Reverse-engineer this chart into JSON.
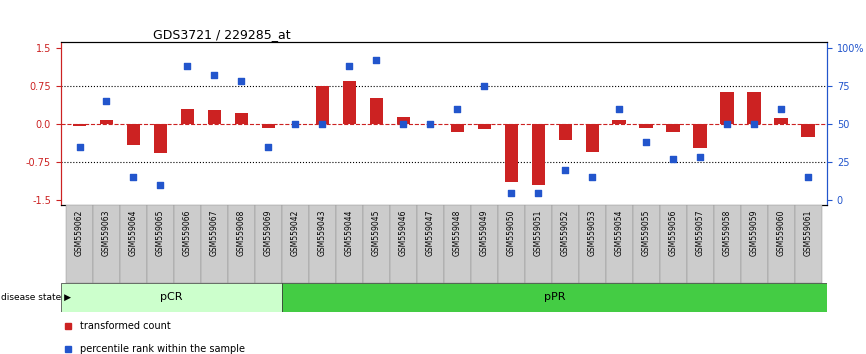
{
  "title": "GDS3721 / 229285_at",
  "samples": [
    "GSM559062",
    "GSM559063",
    "GSM559064",
    "GSM559065",
    "GSM559066",
    "GSM559067",
    "GSM559068",
    "GSM559069",
    "GSM559042",
    "GSM559043",
    "GSM559044",
    "GSM559045",
    "GSM559046",
    "GSM559047",
    "GSM559048",
    "GSM559049",
    "GSM559050",
    "GSM559051",
    "GSM559052",
    "GSM559053",
    "GSM559054",
    "GSM559055",
    "GSM559056",
    "GSM559057",
    "GSM559058",
    "GSM559059",
    "GSM559060",
    "GSM559061"
  ],
  "transformed_count": [
    -0.05,
    0.08,
    -0.42,
    -0.58,
    0.3,
    0.28,
    0.22,
    -0.08,
    0.0,
    0.75,
    0.85,
    0.5,
    0.14,
    0.0,
    -0.15,
    -0.1,
    -1.15,
    -1.2,
    -0.32,
    -0.55,
    0.07,
    -0.08,
    -0.15,
    -0.47,
    0.62,
    0.62,
    0.12,
    -0.25
  ],
  "percentile_rank": [
    35,
    65,
    15,
    10,
    88,
    82,
    78,
    35,
    50,
    50,
    88,
    92,
    50,
    50,
    60,
    75,
    5,
    5,
    20,
    15,
    60,
    38,
    27,
    28,
    50,
    50,
    60,
    15
  ],
  "pCR_count": 8,
  "pPR_count": 20,
  "ylim": [
    -1.6,
    1.6
  ],
  "yticks_left": [
    -1.5,
    -0.75,
    0.0,
    0.75,
    1.5
  ],
  "yticks_right": [
    0,
    25,
    50,
    75,
    100
  ],
  "bar_color": "#cc2222",
  "dot_color": "#2255cc",
  "bg_color_pCR": "#ccffcc",
  "bg_color_pPR": "#44cc44",
  "label_bg_color": "#cccccc",
  "zero_line_color": "#cc2222",
  "dotted_line_color": "#000000",
  "title_fontsize": 9,
  "tick_label_fontsize": 5.5,
  "bar_width": 0.5
}
